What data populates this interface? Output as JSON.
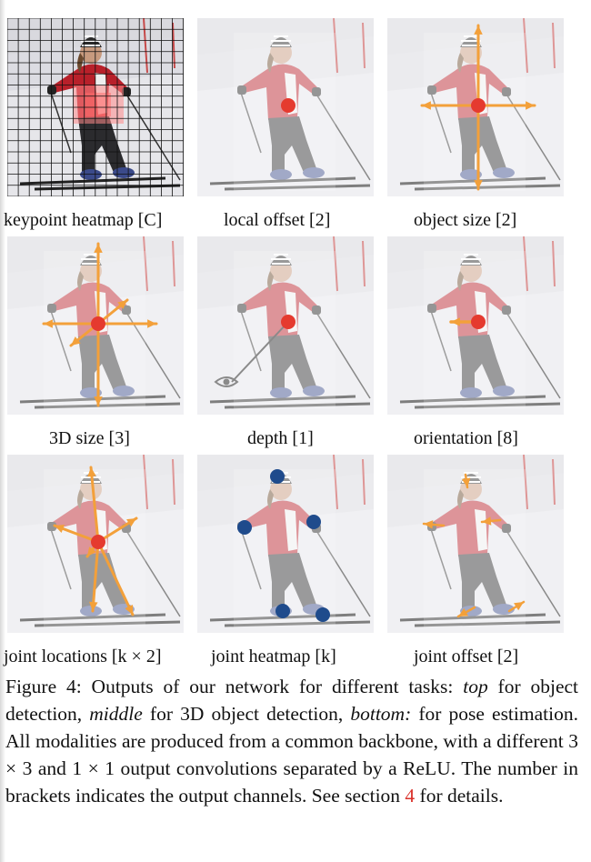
{
  "figure": {
    "panels": [
      {
        "key": "keypoint-heatmap",
        "label": "keypoint heatmap [C]",
        "overlay": "heatmap-grid"
      },
      {
        "key": "local-offset",
        "label": "local offset [2]",
        "overlay": "center-point"
      },
      {
        "key": "object-size",
        "label": "object size [2]",
        "overlay": "size-arrows"
      },
      {
        "key": "3d-size",
        "label": "3D size [3]",
        "overlay": "3d-arrows"
      },
      {
        "key": "depth",
        "label": "depth [1]",
        "overlay": "eye-ray"
      },
      {
        "key": "orientation",
        "label": "orientation [8]",
        "overlay": "orientation-arrow"
      },
      {
        "key": "joint-locations",
        "label": "joint locations [k × 2]",
        "overlay": "joint-arrows"
      },
      {
        "key": "joint-heatmap",
        "label": "joint heatmap [k]",
        "overlay": "joint-dots"
      },
      {
        "key": "joint-offset",
        "label": "joint offset [2]",
        "overlay": "joint-offsets"
      }
    ],
    "colors": {
      "center_point": "#e53a2f",
      "arrow": "#f3a03a",
      "joint_dot": "#1f4b8c",
      "reference_link": "#d9312a"
    }
  },
  "caption": {
    "figure_label": "Figure 4:",
    "text_1": " Outputs of our network for different tasks: ",
    "top": "top",
    "text_2": " for object detection, ",
    "middle": "middle",
    "text_3": " for 3D object detection, ",
    "bottom": "bottom:",
    "text_4": " for pose estimation.  All modalities are produced from a common backbone, with a different 3 × 3 and 1 × 1 output convolutions separated by a ReLU. The number in brackets indicates the output channels. See section ",
    "section_ref": "4",
    "text_5": " for details."
  }
}
